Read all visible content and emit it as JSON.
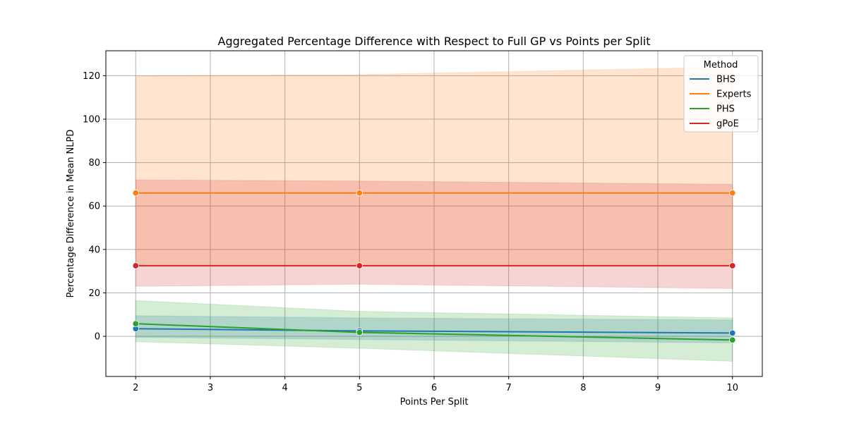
{
  "chart_data": {
    "type": "line",
    "title": "Aggregated Percentage Difference with Respect to Full GP vs Points per Split",
    "xlabel": "Points Per Split",
    "ylabel": "Percentage Difference in Mean NLPD",
    "xlim": [
      1.6,
      10.4
    ],
    "ylim": [
      -18.5,
      131.5
    ],
    "xticks": [
      2,
      3,
      4,
      5,
      6,
      7,
      8,
      9,
      10
    ],
    "yticks": [
      0,
      20,
      40,
      60,
      80,
      100,
      120
    ],
    "grid": true,
    "legend": {
      "title": "Method",
      "placement": "top-right"
    },
    "x": [
      2,
      5,
      10
    ],
    "series": [
      {
        "name": "BHS",
        "color": "#1f77b4",
        "values": [
          3.5,
          2.5,
          1.5
        ],
        "lower": [
          -0.5,
          -1.5,
          -3.0
        ],
        "upper": [
          9.5,
          8.5,
          7.5
        ]
      },
      {
        "name": "Experts",
        "color": "#ff7f0e",
        "values": [
          66,
          66,
          66
        ],
        "lower": [
          32.5,
          32.5,
          32.5
        ],
        "upper": [
          120,
          120.5,
          124
        ]
      },
      {
        "name": "PHS",
        "color": "#2ca02c",
        "values": [
          5.8,
          1.8,
          -1.7
        ],
        "lower": [
          -2.5,
          -5.5,
          -11.5
        ],
        "upper": [
          16.5,
          11.5,
          8.5
        ]
      },
      {
        "name": "gPoE",
        "color": "#d62728",
        "values": [
          32.5,
          32.5,
          32.5
        ],
        "lower": [
          23.0,
          24.0,
          22.0
        ],
        "upper": [
          72.0,
          71.5,
          70.0
        ]
      }
    ]
  }
}
